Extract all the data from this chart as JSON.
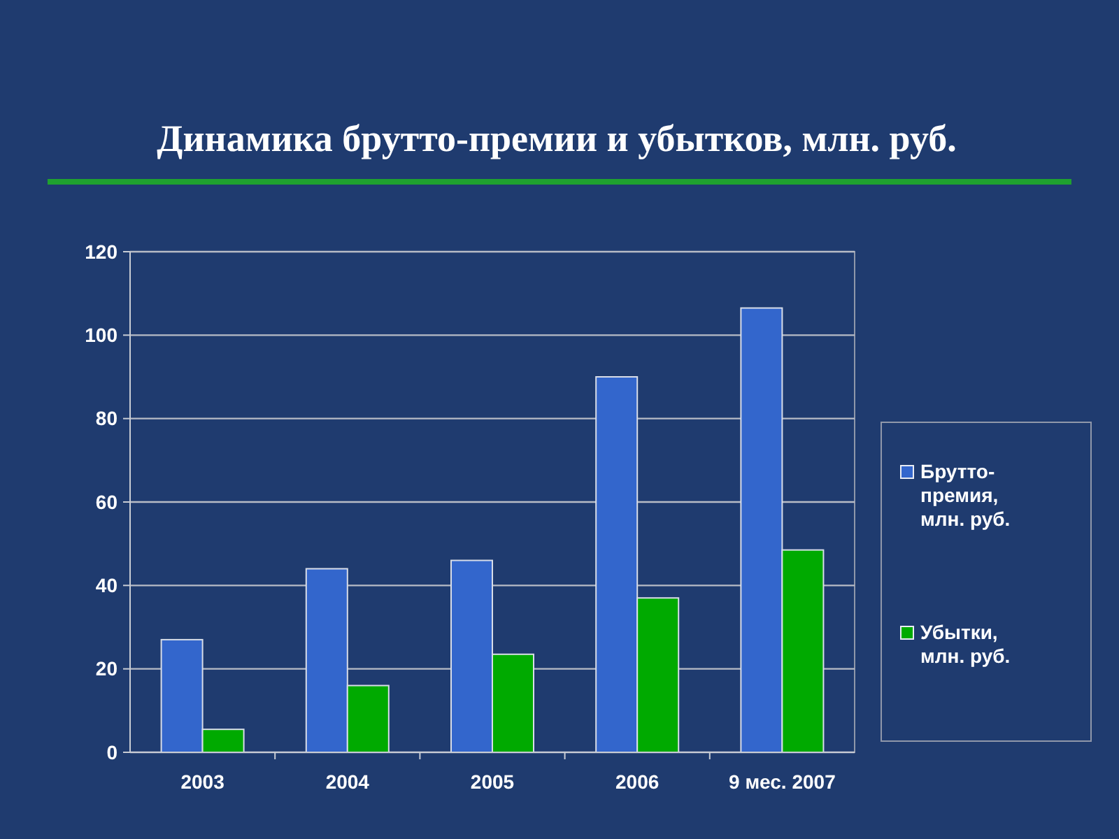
{
  "chart_data": {
    "type": "bar",
    "title": "Динамика брутто-премии и убытков, млн. руб.",
    "categories": [
      "2003",
      "2004",
      "2005",
      "2006",
      "9 мес. 2007"
    ],
    "series": [
      {
        "name": "Брутто-премия, млн. руб.",
        "color": "#3366cc",
        "values": [
          27,
          44,
          46,
          90,
          106.5
        ]
      },
      {
        "name": "Убытки, млн. руб.",
        "color": "#00aa00",
        "values": [
          5.5,
          16,
          23.5,
          37,
          48.5
        ]
      }
    ],
    "ylim": [
      0,
      120
    ],
    "yticks": [
      0,
      20,
      40,
      60,
      80,
      100,
      120
    ],
    "grid": "y",
    "legend": "right"
  }
}
